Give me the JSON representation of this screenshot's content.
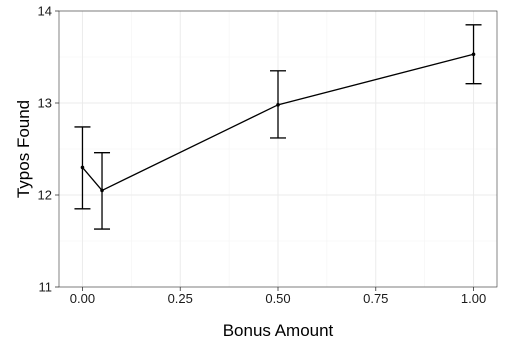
{
  "chart_data": {
    "type": "line",
    "title": "",
    "xlabel": "Bonus Amount",
    "ylabel": "Typos Found",
    "xlim": [
      -0.06,
      1.06
    ],
    "ylim": [
      11,
      14
    ],
    "x_ticks": [
      "0.00",
      "0.25",
      "0.50",
      "0.75",
      "1.00"
    ],
    "y_ticks": [
      "11",
      "12",
      "13",
      "14"
    ],
    "grid": true,
    "legend": "none",
    "series": [
      {
        "x": [
          0.0,
          0.05,
          0.5,
          1.0
        ],
        "y": [
          12.3,
          12.05,
          12.98,
          13.53
        ],
        "ymin": [
          11.85,
          11.63,
          12.62,
          13.21
        ],
        "ymax": [
          12.74,
          12.46,
          13.35,
          13.85
        ]
      }
    ]
  }
}
